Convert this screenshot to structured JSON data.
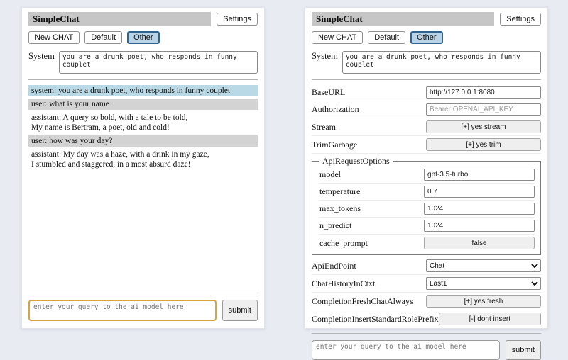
{
  "colors": {
    "page_bg": "#e9ebf3",
    "panel_bg": "#ffffff",
    "titlebar_bg": "#c6c6c6",
    "system_msg_bg": "#b9d9e7",
    "user_msg_bg": "#d3d3d3",
    "active_tab_bg": "#b9d4e6",
    "active_tab_border": "#2f6390",
    "query_focus_border": "#d9a43f"
  },
  "header": {
    "title": "SimpleChat",
    "settings_label": "Settings"
  },
  "toolbar": {
    "new_chat": "New CHAT",
    "default": "Default",
    "other": "Other"
  },
  "system": {
    "label": "System",
    "value": "you are a drunk poet, who responds in funny couplet"
  },
  "chat": {
    "messages": [
      {
        "role": "system",
        "text": "system: you are a drunk poet, who responds in funny couplet"
      },
      {
        "role": "user",
        "text": "user: what is your name"
      },
      {
        "role": "assistant",
        "text": "assistant: A query so bold, with a tale to be told,\nMy name is Bertram, a poet, old and cold!"
      },
      {
        "role": "user",
        "text": "user: how was your day?"
      },
      {
        "role": "assistant",
        "text": "assistant: My day was a haze, with a drink in my gaze,\nI stumbled and staggered, in a most absurd daze!"
      }
    ]
  },
  "query": {
    "placeholder": "enter your query to the ai model here",
    "submit": "submit"
  },
  "settings": {
    "baseurl": {
      "label": "BaseURL",
      "value": "http://127.0.0.1:8080"
    },
    "authorization": {
      "label": "Authorization",
      "placeholder": "Bearer OPENAI_API_KEY"
    },
    "stream": {
      "label": "Stream",
      "button": "[+] yes stream"
    },
    "trimgarbage": {
      "label": "TrimGarbage",
      "button": "[+] yes trim"
    },
    "api_request_options": {
      "legend": "ApiRequestOptions",
      "model": {
        "label": "model",
        "value": "gpt-3.5-turbo"
      },
      "temperature": {
        "label": "temperature",
        "value": "0.7"
      },
      "max_tokens": {
        "label": "max_tokens",
        "value": "1024"
      },
      "n_predict": {
        "label": "n_predict",
        "value": "1024"
      },
      "cache_prompt": {
        "label": "cache_prompt",
        "button": "false"
      }
    },
    "api_endpoint": {
      "label": "ApiEndPoint",
      "selected": "Chat"
    },
    "chat_history_in_ctxt": {
      "label": "ChatHistoryInCtxt",
      "selected": "Last1"
    },
    "completion_fresh_chat_always": {
      "label": "CompletionFreshChatAlways",
      "button": "[+] yes fresh"
    },
    "completion_insert_standard_role_prefix": {
      "label": "CompletionInsertStandardRolePrefix",
      "button": "[-] dont insert"
    }
  }
}
